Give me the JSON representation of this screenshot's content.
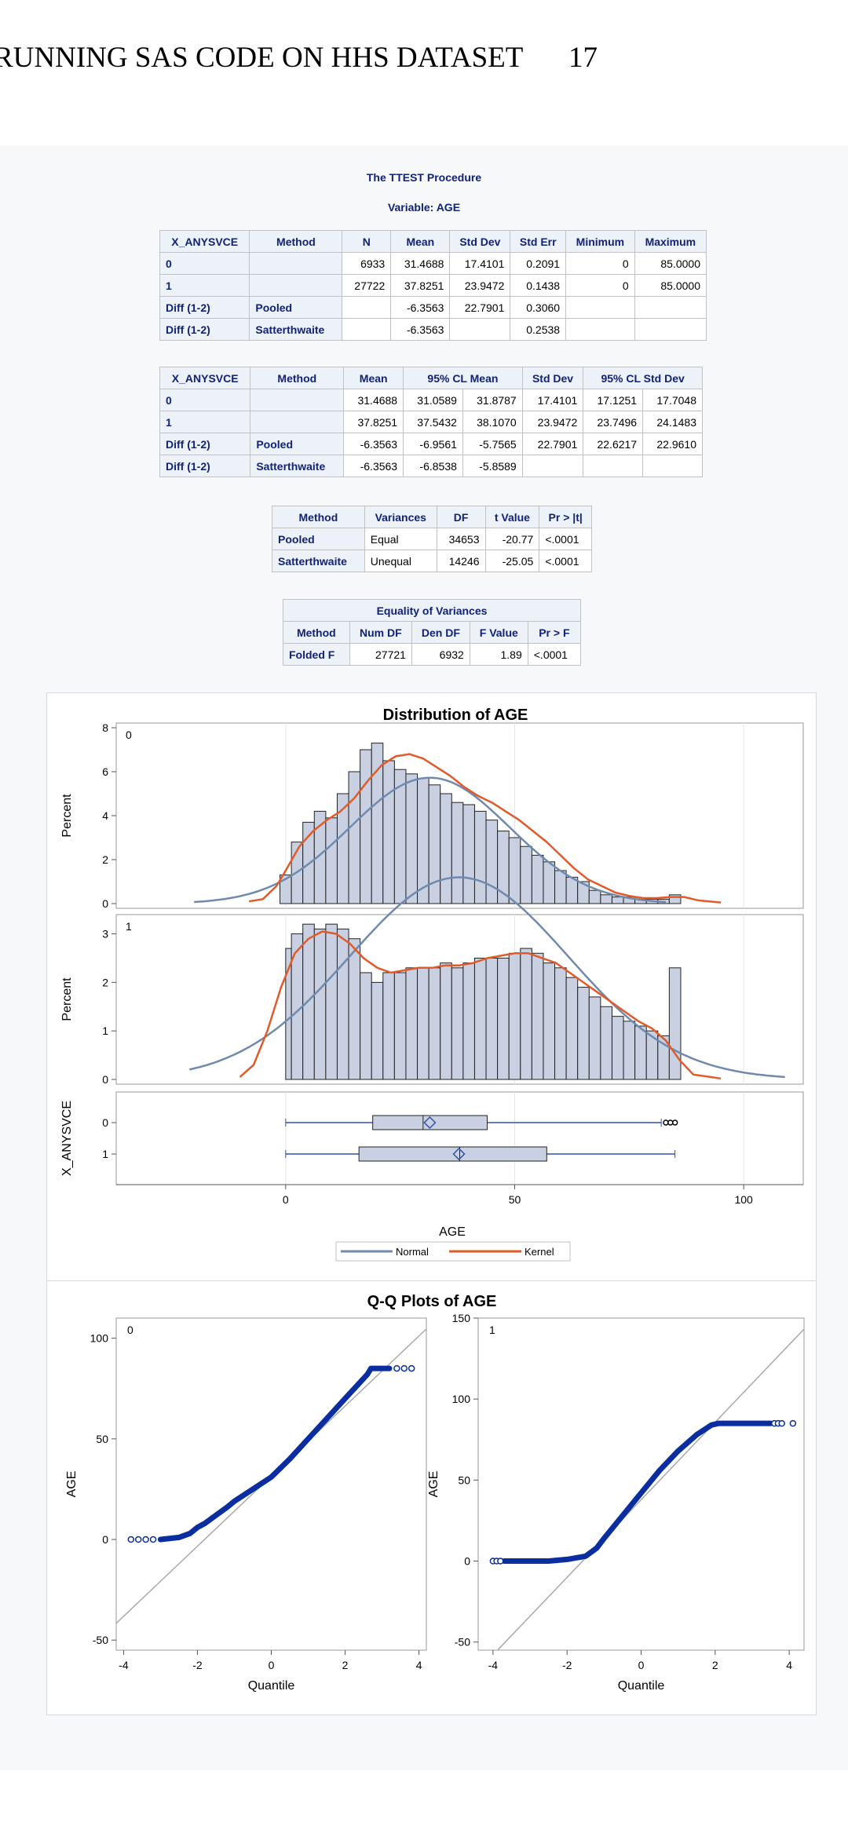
{
  "header": {
    "title": "RUNNING SAS CODE ON HHS DATASET",
    "page_number": "17"
  },
  "procedure": {
    "title": "The TTEST Procedure",
    "variable_label": "Variable: AGE"
  },
  "stats_table": {
    "columns": [
      "X_ANYSVCE",
      "Method",
      "N",
      "Mean",
      "Std Dev",
      "Std Err",
      "Minimum",
      "Maximum"
    ],
    "rows": [
      [
        "0",
        "",
        "6933",
        "31.4688",
        "17.4101",
        "0.2091",
        "0",
        "85.0000"
      ],
      [
        "1",
        "",
        "27722",
        "37.8251",
        "23.9472",
        "0.1438",
        "0",
        "85.0000"
      ],
      [
        "Diff (1-2)",
        "Pooled",
        "",
        "-6.3563",
        "22.7901",
        "0.3060",
        "",
        ""
      ],
      [
        "Diff (1-2)",
        "Satterthwaite",
        "",
        "-6.3563",
        "",
        "0.2538",
        "",
        ""
      ]
    ]
  },
  "cl_table": {
    "columns": [
      "X_ANYSVCE",
      "Method",
      "Mean",
      "95% CL Mean",
      "Std Dev",
      "95% CL Std Dev"
    ],
    "rows": [
      [
        "0",
        "",
        "31.4688",
        "31.0589",
        "31.8787",
        "17.4101",
        "17.1251",
        "17.7048"
      ],
      [
        "1",
        "",
        "37.8251",
        "37.5432",
        "38.1070",
        "23.9472",
        "23.7496",
        "24.1483"
      ],
      [
        "Diff (1-2)",
        "Pooled",
        "-6.3563",
        "-6.9561",
        "-5.7565",
        "22.7901",
        "22.6217",
        "22.9610"
      ],
      [
        "Diff (1-2)",
        "Satterthwaite",
        "-6.3563",
        "-6.8538",
        "-5.8589",
        "",
        "",
        ""
      ]
    ]
  },
  "ttest_table": {
    "columns": [
      "Method",
      "Variances",
      "DF",
      "t Value",
      "Pr > |t|"
    ],
    "rows": [
      [
        "Pooled",
        "Equal",
        "34653",
        "-20.77",
        "<.0001"
      ],
      [
        "Satterthwaite",
        "Unequal",
        "14246",
        "-25.05",
        "<.0001"
      ]
    ]
  },
  "equality_table": {
    "title": "Equality of Variances",
    "columns": [
      "Method",
      "Num DF",
      "Den DF",
      "F Value",
      "Pr > F"
    ],
    "rows": [
      [
        "Folded F",
        "27721",
        "6932",
        "1.89",
        "<.0001"
      ]
    ]
  },
  "chart_data": [
    {
      "type": "bar",
      "title": "Distribution of AGE",
      "xlabel": "AGE",
      "ylabel": "Percent",
      "box_axis_label": "X_ANYSVCE",
      "xlim": [
        -37,
        113
      ],
      "x_ticks": [
        "0",
        "50",
        "100"
      ],
      "legend": [
        "Normal",
        "Kernel"
      ],
      "legend_position": "bottom",
      "colors": {
        "bar_fill": "#c8d0e2",
        "bar_stroke": "#222222",
        "normal": "#6f8aad",
        "kernel": "#e15b2a",
        "box_line": "#3050a8"
      },
      "bin_width": 2.5,
      "panels": [
        {
          "name": "0",
          "ylim": [
            0,
            8
          ],
          "y_ticks": [
            "0",
            "2",
            "4",
            "6",
            "8"
          ],
          "bin_starts": [
            -1.25,
            1.25,
            3.75,
            6.25,
            8.75,
            11.25,
            13.75,
            16.25,
            18.75,
            21.25,
            23.75,
            26.25,
            28.75,
            31.25,
            33.75,
            36.25,
            38.75,
            41.25,
            43.75,
            46.25,
            48.75,
            51.25,
            53.75,
            56.25,
            58.75,
            61.25,
            63.75,
            66.25,
            68.75,
            71.25,
            73.75,
            76.25,
            78.75,
            81.25,
            83.75
          ],
          "values": [
            1.3,
            2.8,
            3.7,
            4.2,
            3.9,
            5.0,
            6.0,
            7.0,
            7.3,
            6.5,
            6.1,
            5.9,
            5.7,
            5.4,
            5.0,
            4.6,
            4.5,
            4.2,
            3.8,
            3.3,
            3.0,
            2.6,
            2.2,
            1.9,
            1.5,
            1.2,
            1.0,
            0.6,
            0.4,
            0.3,
            0.3,
            0.2,
            0.2,
            0.2,
            0.4
          ],
          "normal": {
            "mean": 31.4688,
            "std": 17.4101
          },
          "kernel_x": [
            -8,
            -5,
            -2,
            0,
            3,
            6,
            9,
            12,
            15,
            18,
            21,
            24,
            27,
            30,
            33,
            36,
            39,
            42,
            45,
            48,
            51,
            54,
            57,
            60,
            63,
            66,
            69,
            72,
            75,
            78,
            81,
            84,
            87,
            90,
            95
          ],
          "kernel_y": [
            0.1,
            0.2,
            0.8,
            1.5,
            2.6,
            3.3,
            3.8,
            4.2,
            4.8,
            5.6,
            6.3,
            6.7,
            6.8,
            6.6,
            6.2,
            5.8,
            5.3,
            4.9,
            4.6,
            4.2,
            3.8,
            3.3,
            2.8,
            2.2,
            1.6,
            1.1,
            0.8,
            0.5,
            0.35,
            0.25,
            0.25,
            0.3,
            0.3,
            0.15,
            0.05
          ]
        },
        {
          "name": "1",
          "ylim": [
            0,
            3.3
          ],
          "y_ticks": [
            "0",
            "1",
            "2",
            "3"
          ],
          "bin_starts": [
            0,
            1.25,
            3.75,
            6.25,
            8.75,
            11.25,
            13.75,
            16.25,
            18.75,
            21.25,
            23.75,
            26.25,
            28.75,
            31.25,
            33.75,
            36.25,
            38.75,
            41.25,
            43.75,
            46.25,
            48.75,
            51.25,
            53.75,
            56.25,
            58.75,
            61.25,
            63.75,
            66.25,
            68.75,
            71.25,
            73.75,
            76.25,
            78.75,
            81.25,
            83.75
          ],
          "values": [
            2.7,
            3.0,
            3.2,
            3.1,
            3.2,
            3.1,
            2.9,
            2.2,
            2.0,
            2.2,
            2.2,
            2.3,
            2.3,
            2.3,
            2.4,
            2.3,
            2.4,
            2.5,
            2.5,
            2.5,
            2.6,
            2.7,
            2.6,
            2.4,
            2.3,
            2.1,
            1.9,
            1.7,
            1.5,
            1.3,
            1.2,
            1.1,
            1.0,
            0.9,
            2.3
          ],
          "normal": {
            "mean": 37.8251,
            "std": 23.9472
          },
          "kernel_x": [
            -10,
            -7,
            -4,
            -1,
            2,
            5,
            8,
            11,
            14,
            17,
            20,
            23,
            26,
            29,
            32,
            35,
            38,
            41,
            44,
            47,
            50,
            53,
            56,
            59,
            62,
            65,
            68,
            71,
            74,
            77,
            80,
            83,
            86,
            89,
            95
          ],
          "kernel_y": [
            0.05,
            0.3,
            1.0,
            1.9,
            2.6,
            2.9,
            3.05,
            3.0,
            2.8,
            2.5,
            2.3,
            2.2,
            2.25,
            2.3,
            2.3,
            2.35,
            2.35,
            2.4,
            2.5,
            2.55,
            2.6,
            2.6,
            2.5,
            2.4,
            2.2,
            2.0,
            1.8,
            1.6,
            1.4,
            1.2,
            1.05,
            0.8,
            0.4,
            0.1,
            0.02
          ]
        }
      ],
      "boxplots": [
        {
          "group": "0",
          "whisker_low": 0,
          "q1": 19,
          "median": 30,
          "mean": 31.4688,
          "q3": 44,
          "whisker_high": 82,
          "outliers": [
            83,
            84,
            85
          ]
        },
        {
          "group": "1",
          "whisker_low": 0,
          "q1": 16,
          "median": 38,
          "mean": 37.8251,
          "q3": 57,
          "whisker_high": 85,
          "outliers": []
        }
      ]
    },
    {
      "type": "scatter",
      "title": "Q-Q Plots of AGE",
      "xlabel": "Quantile",
      "ylabel": "AGE",
      "colors": {
        "points": "#0a2ea0",
        "reference_line": "#aaaaaa"
      },
      "panels": [
        {
          "name": "0",
          "xlim": [
            -4.2,
            4.2
          ],
          "ylim": [
            -55,
            110
          ],
          "x_ticks": [
            "-4",
            "-2",
            "0",
            "2",
            "4"
          ],
          "y_ticks": [
            "-50",
            "0",
            "50",
            "100"
          ],
          "reference_line": {
            "intercept": 31.4688,
            "slope": 17.4101
          },
          "curve_x": [
            -3.0,
            -2.5,
            -2.2,
            -2.0,
            -1.8,
            -1.5,
            -1.2,
            -1.0,
            -0.5,
            0.0,
            0.5,
            1.0,
            1.5,
            2.0,
            2.4,
            2.6,
            2.7,
            3.2
          ],
          "curve_y": [
            0,
            1,
            3,
            6,
            8,
            12,
            16,
            19,
            25,
            31,
            40,
            50,
            60,
            70,
            78,
            82,
            85,
            85
          ],
          "isolated_points": [
            [
              -3.8,
              0
            ],
            [
              -3.6,
              0
            ],
            [
              -3.4,
              0
            ],
            [
              -3.2,
              0
            ],
            [
              3.4,
              85
            ],
            [
              3.6,
              85
            ],
            [
              3.8,
              85
            ]
          ]
        },
        {
          "name": "1",
          "xlim": [
            -4.4,
            4.4
          ],
          "ylim": [
            -55,
            150
          ],
          "x_ticks": [
            "-4",
            "-2",
            "0",
            "2",
            "4"
          ],
          "y_ticks": [
            "-50",
            "0",
            "50",
            "100",
            "150"
          ],
          "reference_line": {
            "intercept": 37.8251,
            "slope": 23.9472
          },
          "curve_x": [
            -3.7,
            -2.5,
            -2.0,
            -1.5,
            -1.2,
            -1.0,
            -0.5,
            0.0,
            0.5,
            1.0,
            1.5,
            1.9,
            2.1,
            3.5
          ],
          "curve_y": [
            0,
            0,
            1,
            3,
            8,
            14,
            28,
            42,
            56,
            68,
            78,
            84,
            85,
            85
          ],
          "isolated_points": [
            [
              -4.0,
              0
            ],
            [
              -3.9,
              0
            ],
            [
              -3.8,
              0
            ],
            [
              3.6,
              85
            ],
            [
              3.7,
              85
            ],
            [
              3.8,
              85
            ],
            [
              4.1,
              85
            ]
          ]
        }
      ]
    }
  ]
}
